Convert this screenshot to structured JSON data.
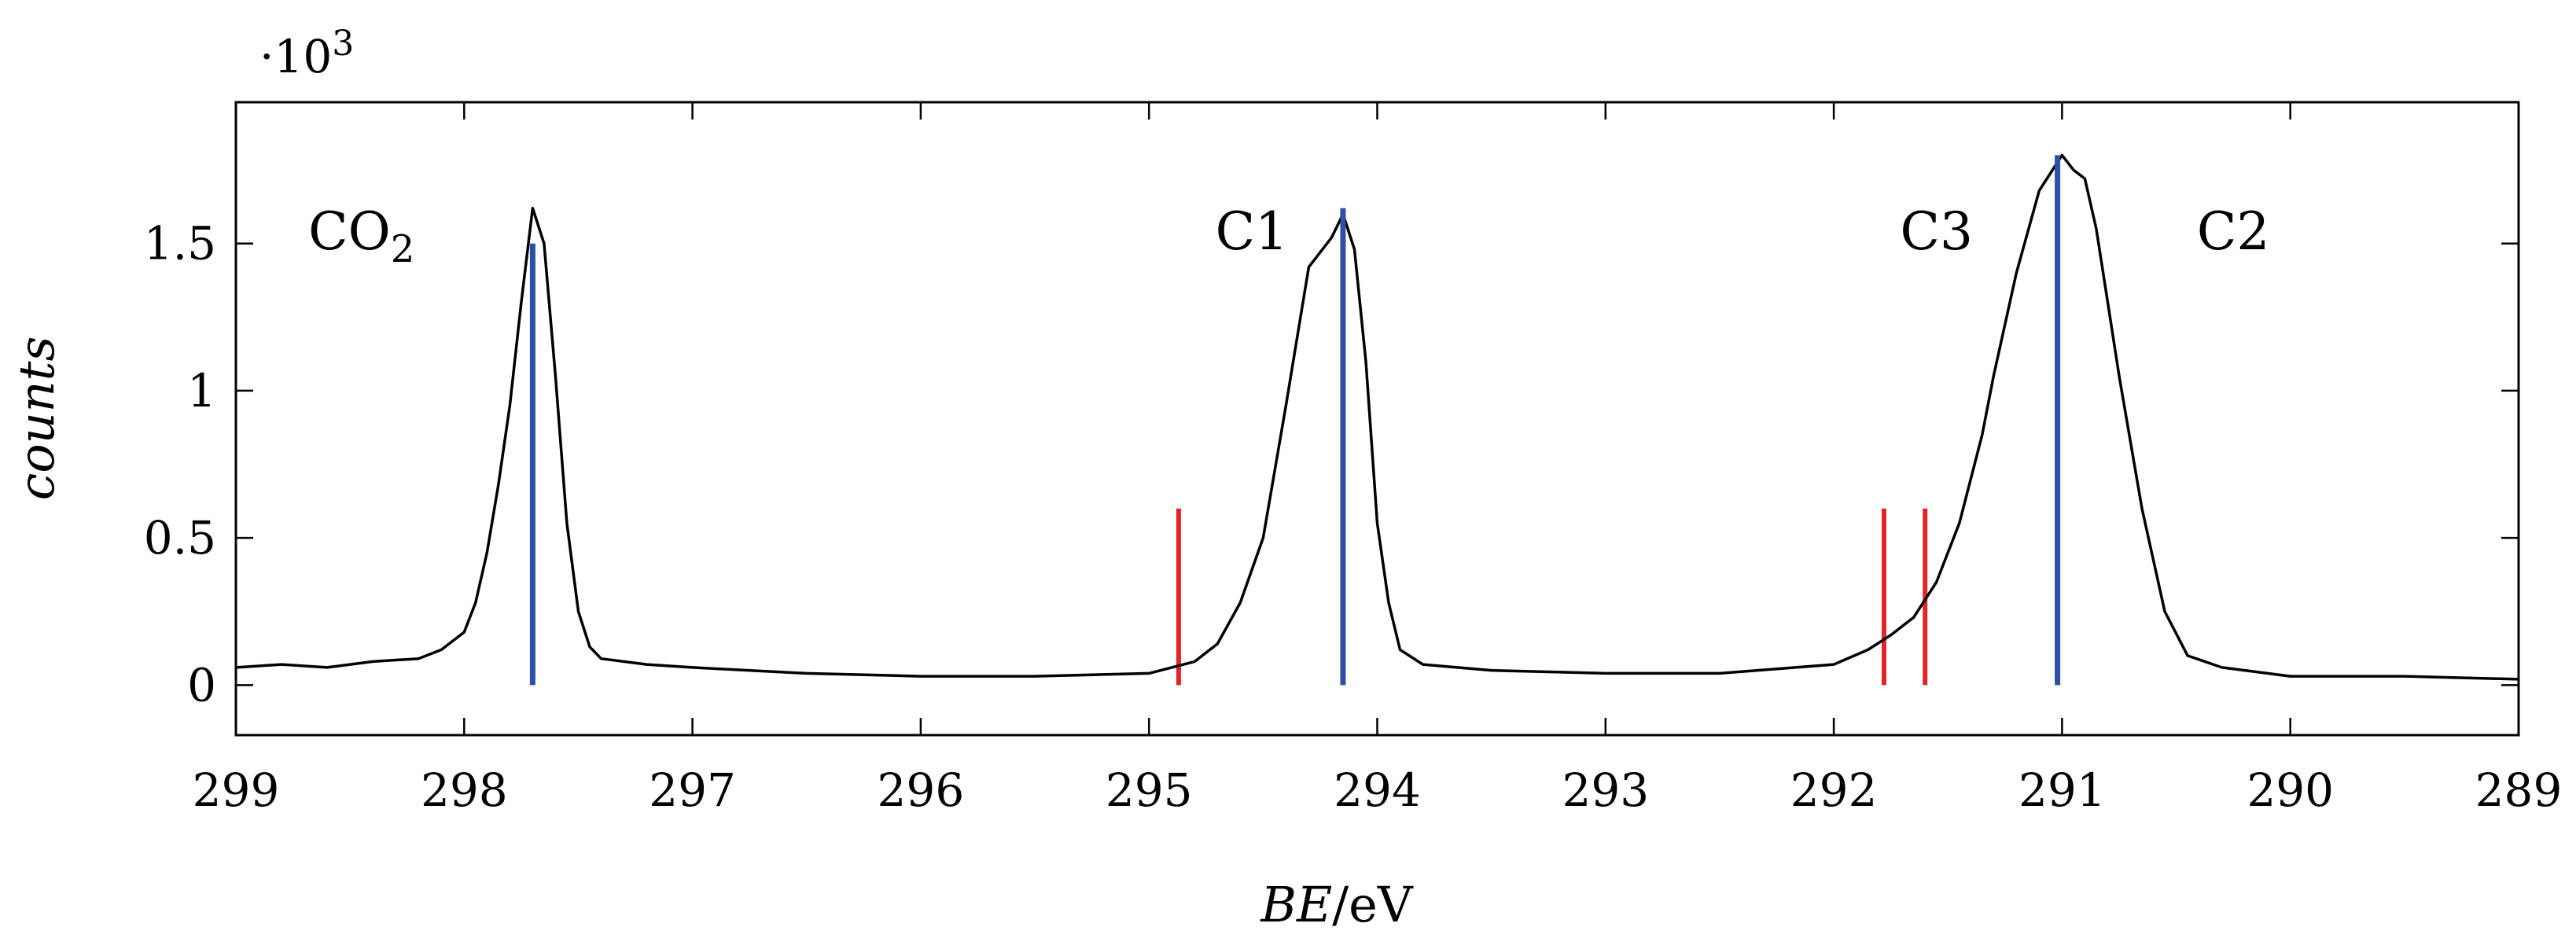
{
  "chart_data": {
    "type": "line",
    "title": "",
    "xlabel": {
      "var": "BE",
      "unit": "/eV"
    },
    "ylabel": "counts",
    "y_scale_note": {
      "base": "·10",
      "exp": "3"
    },
    "xlim": [
      299,
      289
    ],
    "x_reversed": true,
    "ylim": [
      -0.17,
      1.98
    ],
    "x_ticks": [
      299,
      298,
      297,
      296,
      295,
      294,
      293,
      292,
      291,
      290,
      289
    ],
    "x_tick_labels": [
      "299",
      "298",
      "297",
      "296",
      "295",
      "294",
      "293",
      "292",
      "291",
      "290",
      "289"
    ],
    "y_ticks": [
      0,
      0.5,
      1,
      1.5
    ],
    "y_tick_labels": [
      "0",
      "0.5",
      "1",
      "1.5"
    ],
    "grid": false,
    "series": [
      {
        "kind": "spectrum",
        "color": "#000000",
        "points": [
          [
            299.0,
            0.06
          ],
          [
            298.8,
            0.07
          ],
          [
            298.6,
            0.06
          ],
          [
            298.4,
            0.08
          ],
          [
            298.2,
            0.09
          ],
          [
            298.1,
            0.12
          ],
          [
            298.0,
            0.18
          ],
          [
            297.95,
            0.28
          ],
          [
            297.9,
            0.45
          ],
          [
            297.85,
            0.68
          ],
          [
            297.8,
            0.95
          ],
          [
            297.75,
            1.3
          ],
          [
            297.7,
            1.62
          ],
          [
            297.65,
            1.5
          ],
          [
            297.6,
            1.05
          ],
          [
            297.55,
            0.55
          ],
          [
            297.5,
            0.25
          ],
          [
            297.45,
            0.13
          ],
          [
            297.4,
            0.09
          ],
          [
            297.2,
            0.07
          ],
          [
            297.0,
            0.06
          ],
          [
            296.5,
            0.04
          ],
          [
            296.0,
            0.03
          ],
          [
            295.5,
            0.03
          ],
          [
            295.0,
            0.04
          ],
          [
            294.9,
            0.06
          ],
          [
            294.8,
            0.08
          ],
          [
            294.7,
            0.14
          ],
          [
            294.6,
            0.28
          ],
          [
            294.5,
            0.5
          ],
          [
            294.4,
            0.95
          ],
          [
            294.3,
            1.42
          ],
          [
            294.2,
            1.52
          ],
          [
            294.15,
            1.6
          ],
          [
            294.1,
            1.48
          ],
          [
            294.05,
            1.1
          ],
          [
            294.0,
            0.55
          ],
          [
            293.95,
            0.28
          ],
          [
            293.9,
            0.12
          ],
          [
            293.8,
            0.07
          ],
          [
            293.5,
            0.05
          ],
          [
            293.0,
            0.04
          ],
          [
            292.5,
            0.04
          ],
          [
            292.0,
            0.07
          ],
          [
            291.85,
            0.12
          ],
          [
            291.75,
            0.17
          ],
          [
            291.65,
            0.23
          ],
          [
            291.55,
            0.35
          ],
          [
            291.45,
            0.55
          ],
          [
            291.35,
            0.85
          ],
          [
            291.3,
            1.05
          ],
          [
            291.2,
            1.4
          ],
          [
            291.1,
            1.68
          ],
          [
            291.0,
            1.8
          ],
          [
            290.95,
            1.75
          ],
          [
            290.9,
            1.72
          ],
          [
            290.85,
            1.55
          ],
          [
            290.8,
            1.3
          ],
          [
            290.75,
            1.05
          ],
          [
            290.65,
            0.6
          ],
          [
            290.55,
            0.25
          ],
          [
            290.45,
            0.1
          ],
          [
            290.3,
            0.06
          ],
          [
            290.0,
            0.03
          ],
          [
            289.5,
            0.03
          ],
          [
            289.0,
            0.02
          ]
        ]
      }
    ],
    "blue_lines": [
      {
        "x": 297.7,
        "y0": 0,
        "y1": 1.5
      },
      {
        "x": 294.15,
        "y0": 0,
        "y1": 1.62
      },
      {
        "x": 291.02,
        "y0": 0,
        "y1": 1.8
      }
    ],
    "red_lines": [
      {
        "x": 294.87,
        "y0": 0,
        "y1": 0.6
      },
      {
        "x": 291.78,
        "y0": 0,
        "y1": 0.6
      },
      {
        "x": 291.6,
        "y0": 0,
        "y1": 0.6
      }
    ],
    "peak_labels": [
      {
        "base": "CO",
        "sub": "2",
        "x": 298.45,
        "y": 1.48
      },
      {
        "base": "C1",
        "sub": "",
        "x": 294.55,
        "y": 1.48
      },
      {
        "base": "C3",
        "sub": "",
        "x": 291.55,
        "y": 1.48
      },
      {
        "base": "C2",
        "sub": "",
        "x": 290.25,
        "y": 1.48
      }
    ],
    "colors": {
      "axis": "#000000",
      "blue": "#2e4fa3",
      "red": "#e02428",
      "trace": "#000000"
    }
  }
}
